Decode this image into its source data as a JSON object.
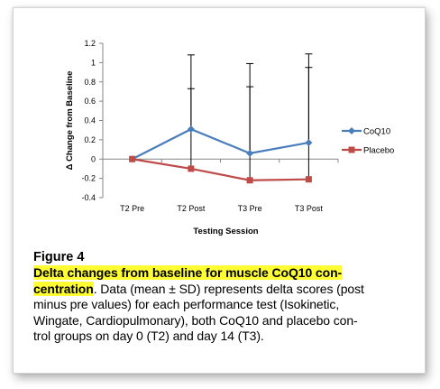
{
  "figure": {
    "label": "Figure 4",
    "title_line1": "Delta changes from baseline for muscle CoQ10 con-",
    "title_line2": "centration",
    "body": [
      ". Data (mean ± SD) represents delta scores (post",
      "minus pre values) for each performance test (Isokinetic,",
      "Wingate, Cardiopulmonary), both CoQ10 and placebo con-",
      "trol groups on day 0 (T2) and day 14 (T3)."
    ]
  },
  "chart_data": {
    "type": "line",
    "categories": [
      "T2 Pre",
      "T2 Post",
      "T3 Pre",
      "T3 Post"
    ],
    "xlabel": "Testing Session",
    "ylabel": "Δ Change from Baseline",
    "ylim": [
      -0.4,
      1.2
    ],
    "yticks": [
      "1.2",
      "1",
      "0.8",
      "0.6",
      "0.4",
      "0.2",
      "0",
      "-0.2",
      "-0.4"
    ],
    "ytick_values": [
      1.2,
      1.0,
      0.8,
      0.6,
      0.4,
      0.2,
      0.0,
      -0.2,
      -0.4
    ],
    "grid": false,
    "legend": "right",
    "series": [
      {
        "name": "CoQ10",
        "values": [
          0.0,
          0.31,
          0.06,
          0.17
        ],
        "error_upper": [
          0.0,
          1.08,
          0.99,
          1.09
        ],
        "error_lower": [
          0.0,
          0.31,
          0.06,
          0.17
        ],
        "color": "#4a7ebb",
        "marker": "diamond"
      },
      {
        "name": "Placebo",
        "values": [
          0.0,
          -0.1,
          -0.22,
          -0.21
        ],
        "error_upper": [
          0.0,
          0.73,
          0.75,
          0.95
        ],
        "error_lower": [
          0.0,
          -0.1,
          -0.22,
          -0.21
        ],
        "color": "#be4b48",
        "marker": "square"
      }
    ]
  }
}
